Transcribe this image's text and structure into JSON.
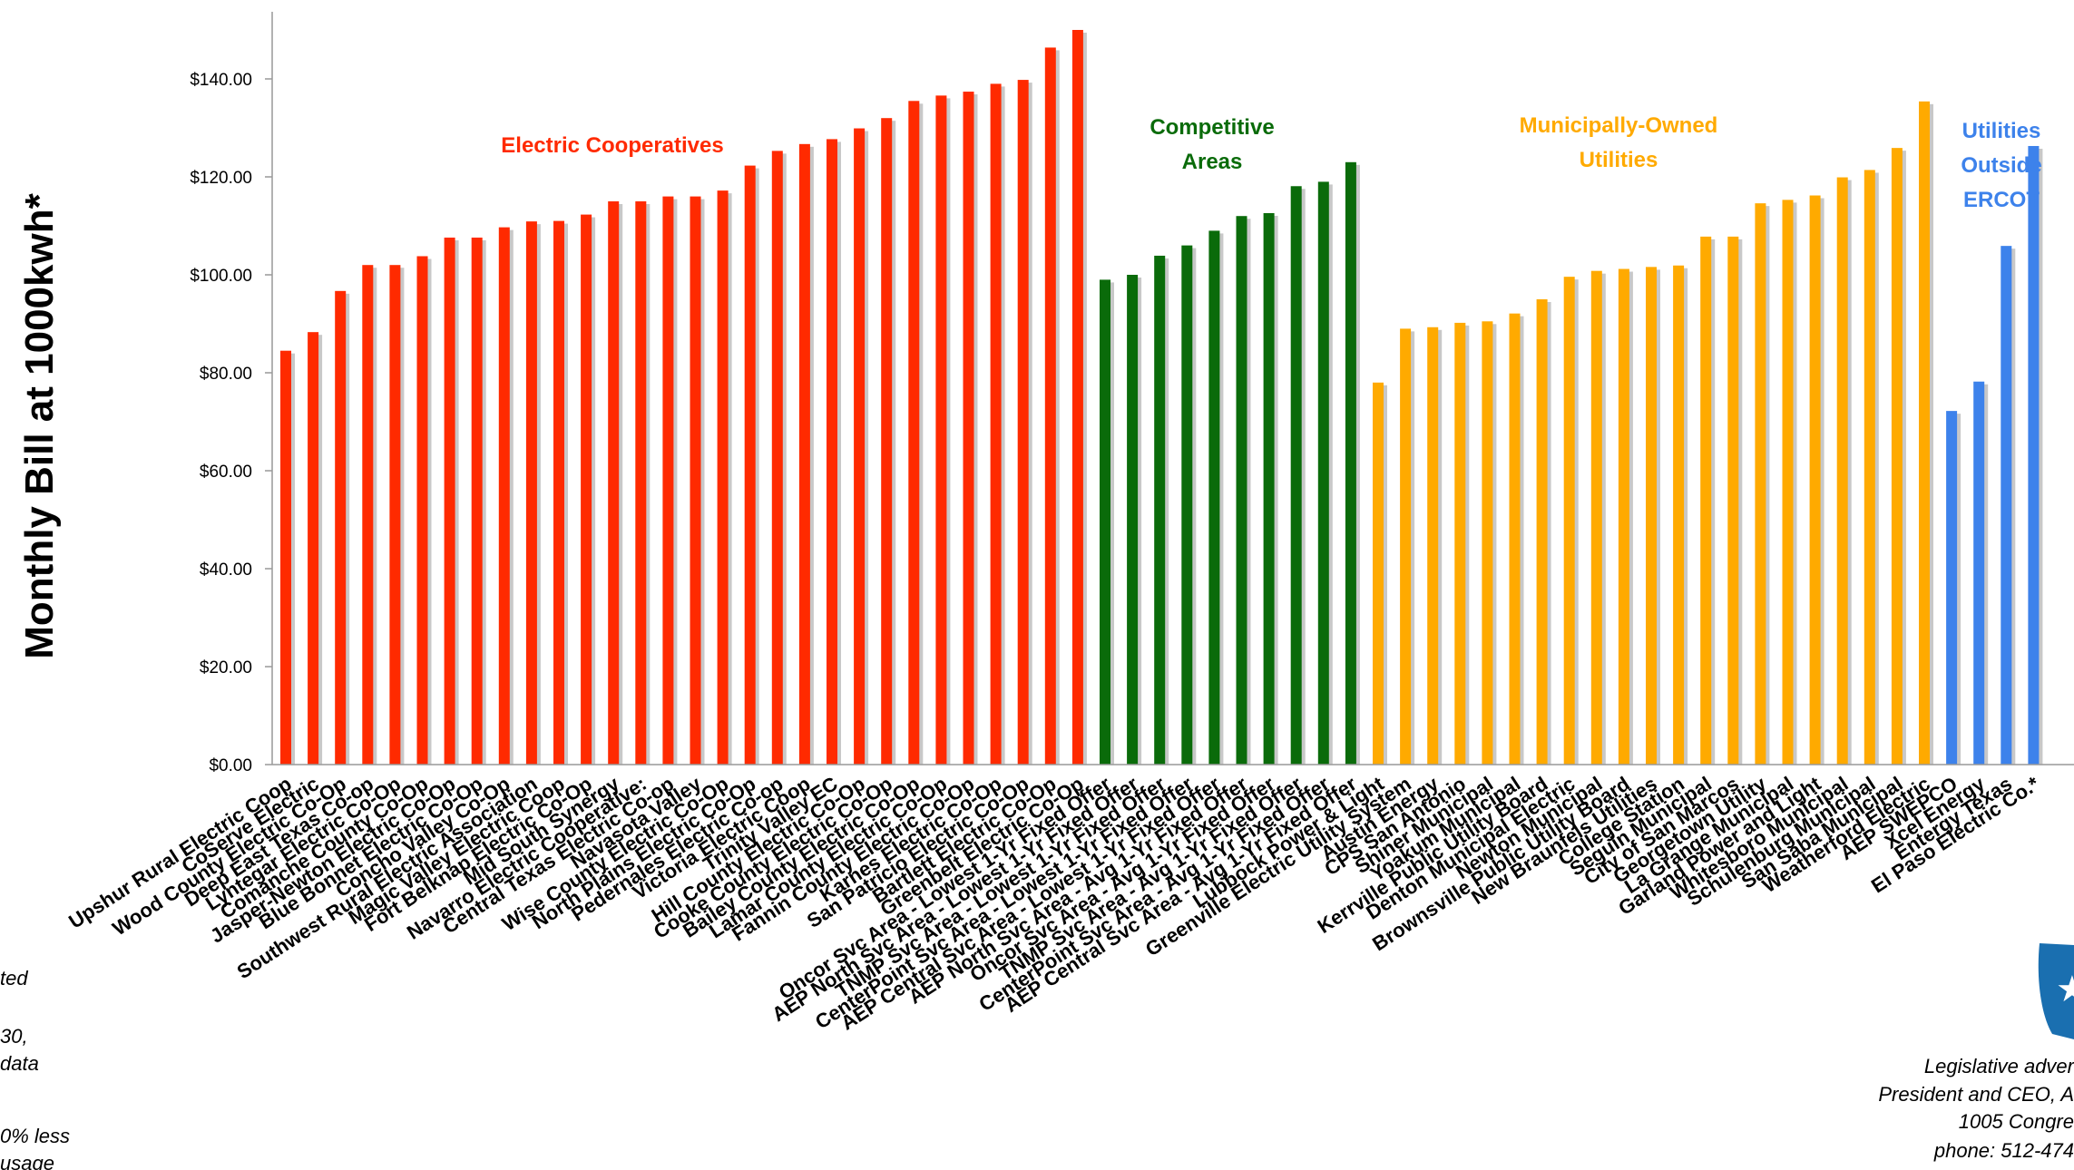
{
  "chart_data": {
    "type": "bar",
    "ylabel": "Monthly Bill at 1000kwh*",
    "y_tick_labels": [
      "$0.00",
      "$20.00",
      "$40.00",
      "$60.00",
      "$80.00",
      "$100.00",
      "$120.00",
      "$140.00"
    ],
    "ylim": [
      0,
      150
    ],
    "grid": false,
    "groups": [
      {
        "name": "Electric Cooperatives",
        "color": "#ff2a00",
        "categories": [
          "Upshur Rural Electric Coop",
          "CoServe Electric",
          "Wood County Electric Co-Op",
          "Deep East Texas Co-op",
          "Lyntegar Electric Co-Op",
          "Comanche County Co-Op",
          "Jasper-Newton Electric Co-Op",
          "Blue Bonnet Electric Co-Op",
          "Concho Valley Co-Op",
          "Southwest Rural Electric Association",
          "Magic Valley Electric Coop",
          "Fort Belknap Electric Co-Op",
          "Mid South Synergy",
          "Navarro Electric Cooperative:",
          "Central Texas Electric Co-op",
          "Navasota Valley",
          "Wise County Electric Co-Op",
          "North Plains Electric Co-Op",
          "Pedernales Electric Co-op",
          "Victoria Electric Coop",
          "Trinity Valley EC",
          "Hill County Electric Co-Op",
          "Cooke County Electric Co-Op",
          "Bailey County Electric Co-Op",
          "Lamar County Electric Co-Op",
          "Fannin County Electric Co-Op",
          "Karnes Electric Co-Op",
          "San Patricio Electric Co-Op",
          "Bartlett Electric Co-Op",
          "Greenbelt Electric Co-Op"
        ],
        "values": [
          84.5,
          88.3,
          96.7,
          102.0,
          102.0,
          103.8,
          107.6,
          107.6,
          109.7,
          110.9,
          111.0,
          112.3,
          115.0,
          115.0,
          116.0,
          116.0,
          117.2,
          122.3,
          125.3,
          126.7,
          127.7,
          129.9,
          132.0,
          135.5,
          136.6,
          137.4,
          139.0,
          139.8,
          146.4,
          150.0
        ]
      },
      {
        "name": "Competitive Areas",
        "color": "#0a6b0a",
        "categories": [
          "Oncor Svc Area - Lowest 1-Yr Fixed Offer",
          "AEP North Svc Area - Lowest 1-Yr Fixed Offer",
          "TNMP Svc Area - Lowest 1-Yr Fixed Offer",
          "CenterPoint Svc Area - Lowest 1-Yr Fixed Offer",
          "AEP Central Svc Area - Lowest 1-Yr Fixed Offer",
          "AEP North Svc Area - Avg 1-Yr Fixed Offer",
          "Oncor Svc Area - Avg 1-Yr Fixed Offer",
          "TNMP Svc Area - Avg 1-Yr Fixed Offer",
          "CenterPoint Svc Area - Avg 1-Yr Fixed Offer",
          "AEP Central Svc Area - Avg 1-Yr Fixed Offer"
        ],
        "values": [
          99.0,
          100.0,
          103.9,
          106.0,
          109.0,
          112.0,
          112.6,
          118.1,
          119.0,
          123.0
        ]
      },
      {
        "name": "Municipally-Owned Utilities",
        "color": "#ffaa00",
        "categories": [
          "Lubbock Power & Light",
          "Greenville Electric Utility System",
          "Austin Energy",
          "CPS San Antonio",
          "Shiner Municipal",
          "Yoakum Municipal",
          "Kerrville Public Utility Board",
          "Denton Municipal Electric",
          "Newton Municipal",
          "Brownsville Public Utility Board",
          "New Braunfels Utilities",
          "College Station",
          "Seguin Municipal",
          "City of San Marcos",
          "Georgetown Utility",
          "La Grange Municipal",
          "Garland Power and Light",
          "Whitesboro Municipal",
          "Schulenburg Municipal",
          "San Saba Municipal",
          "Weatherford Electric"
        ],
        "values": [
          78.0,
          89.0,
          89.3,
          90.2,
          90.5,
          92.1,
          95.0,
          99.6,
          100.8,
          101.2,
          101.6,
          101.9,
          107.8,
          107.8,
          114.6,
          115.3,
          116.2,
          119.9,
          121.4,
          125.9,
          135.4
        ]
      },
      {
        "name": "Utilities Outside ERCOT",
        "color": "#3d82eb",
        "categories": [
          "AEP SWEPCO",
          "Xcel Energy",
          "Entergy Texas",
          "El Paso Electric Co.*"
        ],
        "values": [
          72.2,
          78.2,
          105.9,
          126.3
        ]
      }
    ]
  },
  "group_labels": {
    "coop": "Electric Cooperatives",
    "competitive": [
      "Competitive",
      "Areas"
    ],
    "municipal": [
      "Municipally-Owned",
      "Utilities"
    ],
    "outside": [
      "Utilities",
      "Outside",
      "ERCOT"
    ]
  },
  "footnote_fragments": [
    "ted",
    "30,",
    "data",
    "0% less",
    "usage"
  ],
  "contact_lines": [
    "Legislative adver",
    "President and CEO, A",
    "1005 Congre",
    "phone: 512-474"
  ]
}
